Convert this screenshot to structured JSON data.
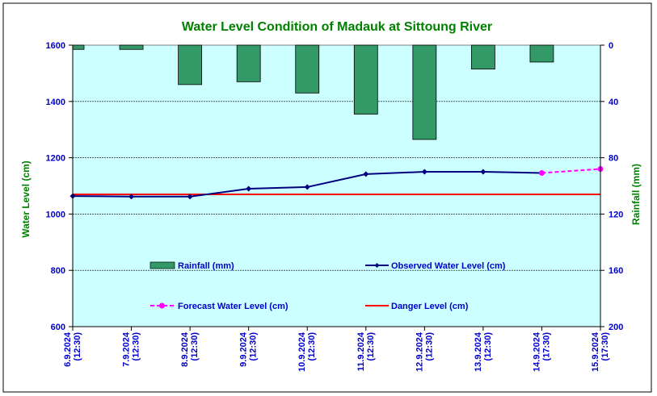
{
  "chart_data": {
    "type": "line",
    "title": "Water Level Condition of Madauk at Sittoung River",
    "ylabel_left": "Water Level (cm)",
    "ylabel_right": "Rainfall (mm)",
    "ylim_left": [
      600,
      1600
    ],
    "yticks_left": [
      "1600",
      "1400",
      "1200",
      "1000",
      "800",
      "600"
    ],
    "ylim_right": [
      0,
      200
    ],
    "yticks_right": [
      "0",
      "40",
      "80",
      "120",
      "160",
      "200"
    ],
    "right_axis_inverted": true,
    "grid": true,
    "legend_placement": "inside-bottom",
    "x_dates": [
      "6.9.2024",
      "7.9.2024",
      "8.9.2024",
      "9.9.2024",
      "10.9.2024",
      "11.9.2024",
      "12.9.2024",
      "13.9.2024",
      "14.9.2024",
      "15.9.2024"
    ],
    "x_times": [
      "(12:30)",
      "(12:30)",
      "(12:30)",
      "(12:30)",
      "(12:30)",
      "(12:30)",
      "(12:30)",
      "(12:30)",
      "(17:30)",
      "(17:30)"
    ],
    "series": [
      {
        "name": "Rainfall (mm)",
        "kind": "bar",
        "axis": "right",
        "color": "#339966",
        "values": [
          3,
          3,
          28,
          26,
          34,
          49,
          67,
          17,
          12,
          null
        ]
      },
      {
        "name": "Observed Water Level (cm)",
        "kind": "line",
        "axis": "left",
        "color": "#000080",
        "values": [
          1064,
          1062,
          1062,
          1090,
          1096,
          1142,
          1150,
          1150,
          1146,
          null
        ]
      },
      {
        "name": "Forecast Water Level (cm)",
        "kind": "dashed-line",
        "axis": "left",
        "color": "#ff00ff",
        "values": [
          null,
          null,
          null,
          null,
          null,
          null,
          null,
          null,
          1146,
          1160
        ]
      },
      {
        "name": "Danger Level (cm)",
        "kind": "hline",
        "axis": "left",
        "color": "#ff0000",
        "value": 1070
      }
    ],
    "colors": {
      "title": "#008000",
      "axis_labels": "#008000",
      "tick_labels": "#0000cc",
      "plot_background": "#ccffff",
      "legend_text": "#0000cc"
    }
  }
}
